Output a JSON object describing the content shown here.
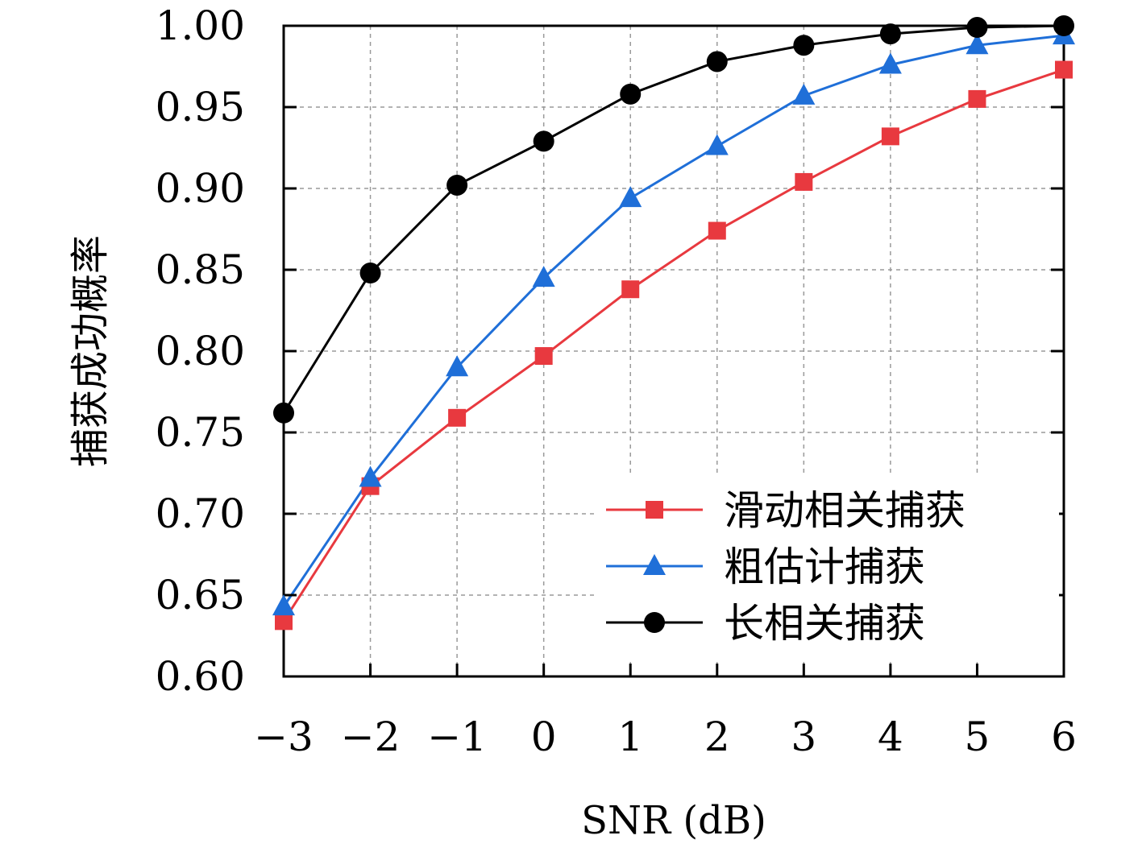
{
  "chart_data": {
    "type": "line",
    "xlabel": "SNR (dB)",
    "ylabel": "捕获成功概率",
    "x": [
      -3,
      -2,
      -1,
      0,
      1,
      2,
      3,
      4,
      5,
      6
    ],
    "x_tick_labels": [
      "−3",
      "−2",
      "−1",
      "0",
      "1",
      "2",
      "3",
      "4",
      "5",
      "6"
    ],
    "y_tick_labels": [
      "0.60",
      "0.65",
      "0.70",
      "0.75",
      "0.80",
      "0.85",
      "0.90",
      "0.95",
      "1.00"
    ],
    "xlim": [
      -3,
      6
    ],
    "ylim": [
      0.6,
      1.0
    ],
    "grid": true,
    "legend_position": "bottom-right",
    "series": [
      {
        "name": "滑动相关捕获",
        "color": "#e8393f",
        "marker": "square",
        "values": [
          0.634,
          0.717,
          0.759,
          0.797,
          0.838,
          0.874,
          0.904,
          0.932,
          0.955,
          0.973
        ]
      },
      {
        "name": "粗估计捕获",
        "color": "#1f6fd8",
        "marker": "triangle",
        "values": [
          0.643,
          0.722,
          0.79,
          0.845,
          0.894,
          0.926,
          0.957,
          0.976,
          0.988,
          0.994
        ]
      },
      {
        "name": "长相关捕获",
        "color": "#000000",
        "marker": "circle",
        "values": [
          0.762,
          0.848,
          0.902,
          0.929,
          0.958,
          0.978,
          0.988,
          0.995,
          0.999,
          1.0
        ]
      }
    ]
  }
}
